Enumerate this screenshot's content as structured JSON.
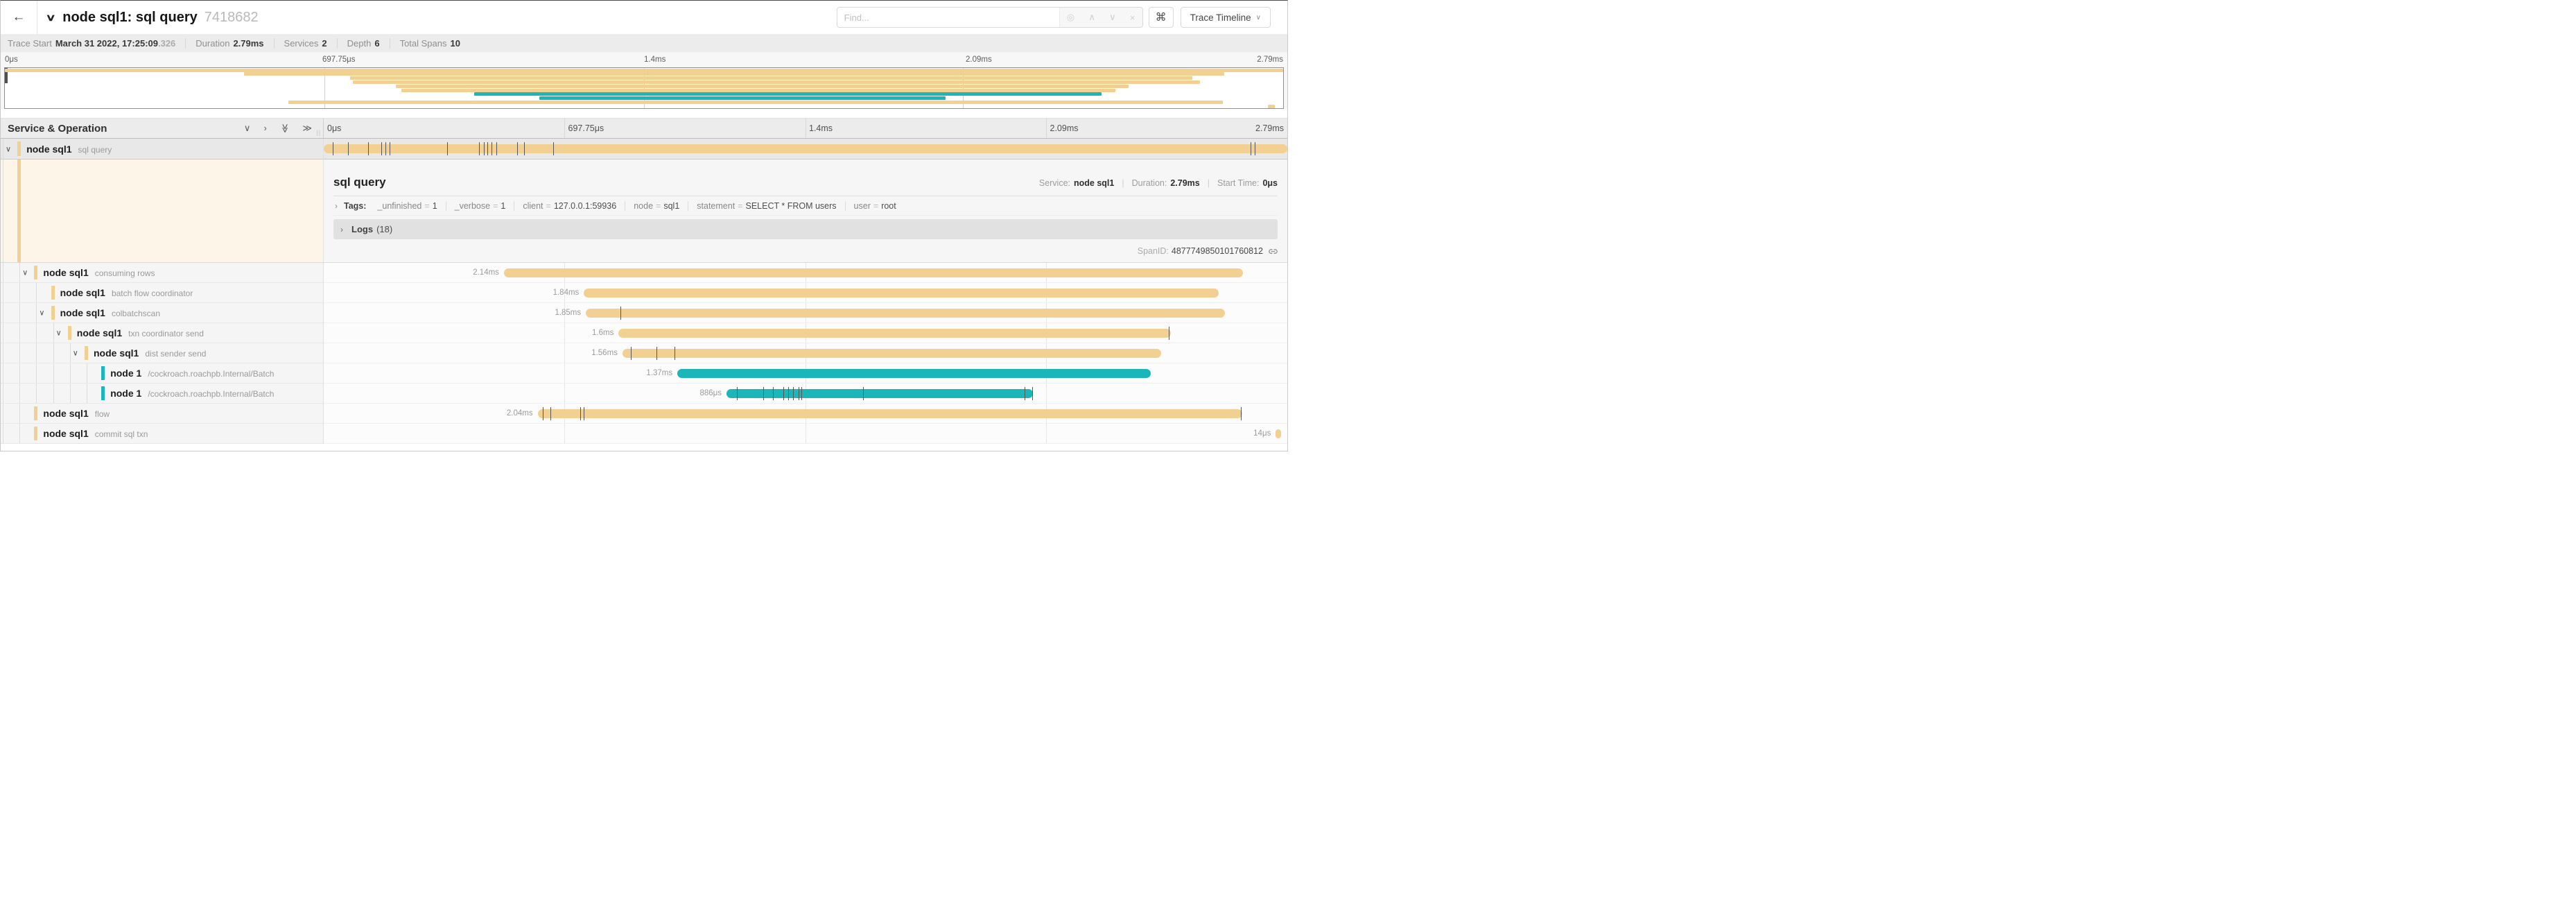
{
  "header": {
    "back_icon": "←",
    "collapse_icon": "∨",
    "title": "node sql1: sql query",
    "trace_id": "7418682",
    "find_placeholder": "Find...",
    "find_icons": {
      "target": "◎",
      "prev": "∧",
      "next": "∨",
      "clear": "×"
    },
    "shortcut_icon": "⌘",
    "view_button_label": "Trace Timeline",
    "view_button_caret": "∨"
  },
  "trace_meta": {
    "trace_start_label": "Trace Start",
    "trace_start_value": "March 31 2022, 17:25:09",
    "trace_start_fraction": ".326",
    "duration_label": "Duration",
    "duration_value": "2.79ms",
    "services_label": "Services",
    "services_value": "2",
    "depth_label": "Depth",
    "depth_value": "6",
    "total_spans_label": "Total Spans",
    "total_spans_value": "10"
  },
  "axis_ticks": [
    "0μs",
    "697.75μs",
    "1.4ms",
    "2.09ms",
    "2.79ms"
  ],
  "section_header": {
    "title": "Service & Operation",
    "collapse_one_icon": "∨",
    "expand_one_icon": "›",
    "collapse_all_icon": "≫",
    "expand_all_icon": "≫",
    "resizer_icon": "||"
  },
  "colors": {
    "tan": "#f2d091",
    "teal": "#1bb5ba",
    "selected_row": "#e8e8e8",
    "detail_bg": "#fdf6e8"
  },
  "spans": [
    {
      "service": "node sql1",
      "operation": "sql query",
      "depth": 0,
      "color": "tan",
      "has_children": true,
      "selected": true,
      "bar_start_pct": 0,
      "bar_width_pct": 100,
      "duration_label": "",
      "ticks": [
        0.9,
        2.5,
        4.6,
        6.0,
        6.4,
        6.8,
        12.8,
        16.1,
        16.6,
        17.0,
        17.4,
        17.9,
        20.1,
        20.8,
        23.8,
        96.2,
        96.6
      ]
    },
    {
      "service": "node sql1",
      "operation": "consuming rows",
      "depth": 1,
      "color": "tan",
      "has_children": true,
      "selected": false,
      "bar_start_pct": 18.7,
      "bar_width_pct": 76.7,
      "duration_label": "2.14ms",
      "ticks": []
    },
    {
      "service": "node sql1",
      "operation": "batch flow coordinator",
      "depth": 2,
      "color": "tan",
      "has_children": false,
      "selected": false,
      "bar_start_pct": 27.0,
      "bar_width_pct": 65.9,
      "duration_label": "1.84ms",
      "ticks": []
    },
    {
      "service": "node sql1",
      "operation": "colbatchscan",
      "depth": 2,
      "color": "tan",
      "has_children": true,
      "selected": false,
      "bar_start_pct": 27.2,
      "bar_width_pct": 66.3,
      "duration_label": "1.85ms",
      "ticks": [
        30.8
      ]
    },
    {
      "service": "node sql1",
      "operation": "txn coordinator send",
      "depth": 3,
      "color": "tan",
      "has_children": true,
      "selected": false,
      "bar_start_pct": 30.6,
      "bar_width_pct": 57.3,
      "duration_label": "1.6ms",
      "ticks": [
        87.7
      ]
    },
    {
      "service": "node sql1",
      "operation": "dist sender send",
      "depth": 4,
      "color": "tan",
      "has_children": true,
      "selected": false,
      "bar_start_pct": 31.0,
      "bar_width_pct": 55.9,
      "duration_label": "1.56ms",
      "ticks": [
        31.9,
        34.5,
        36.4
      ]
    },
    {
      "service": "node 1",
      "operation": "/cockroach.roachpb.Internal/Batch",
      "depth": 5,
      "color": "teal",
      "has_children": false,
      "selected": false,
      "bar_start_pct": 36.7,
      "bar_width_pct": 49.1,
      "duration_label": "1.37ms",
      "ticks": []
    },
    {
      "service": "node 1",
      "operation": "/cockroach.roachpb.Internal/Batch",
      "depth": 5,
      "color": "teal",
      "has_children": false,
      "selected": false,
      "bar_start_pct": 41.8,
      "bar_width_pct": 31.8,
      "duration_label": "886μs",
      "ticks": [
        42.9,
        45.6,
        46.6,
        47.7,
        48.2,
        48.7,
        49.3,
        49.6,
        56.0,
        72.7,
        73.5
      ]
    },
    {
      "service": "node sql1",
      "operation": "flow",
      "depth": 1,
      "color": "tan",
      "has_children": false,
      "selected": false,
      "bar_start_pct": 22.2,
      "bar_width_pct": 73.1,
      "duration_label": "2.04ms",
      "ticks": [
        22.7,
        23.5,
        26.6,
        27.0,
        95.2
      ]
    },
    {
      "service": "node sql1",
      "operation": "commit sql txn",
      "depth": 1,
      "color": "tan",
      "has_children": false,
      "selected": false,
      "bar_start_pct": 98.8,
      "bar_width_pct": 0.55,
      "duration_label": "14μs",
      "ticks": []
    }
  ],
  "detail": {
    "title": "sql query",
    "service_label": "Service:",
    "service_value": "node sql1",
    "duration_label": "Duration:",
    "duration_value": "2.79ms",
    "start_time_label": "Start Time:",
    "start_time_value": "0μs",
    "tags_caret": "›",
    "tags_label": "Tags:",
    "tags": [
      {
        "key": "_unfinished",
        "value": "1"
      },
      {
        "key": "_verbose",
        "value": "1"
      },
      {
        "key": "client",
        "value": "127.0.0.1:59936"
      },
      {
        "key": "node",
        "value": "sql1"
      },
      {
        "key": "statement",
        "value": "SELECT * FROM users"
      },
      {
        "key": "user",
        "value": "root"
      }
    ],
    "logs_caret": "›",
    "logs_label": "Logs",
    "logs_count": "(18)",
    "spanid_label": "SpanID:",
    "spanid_value": "4877749850101760812"
  }
}
